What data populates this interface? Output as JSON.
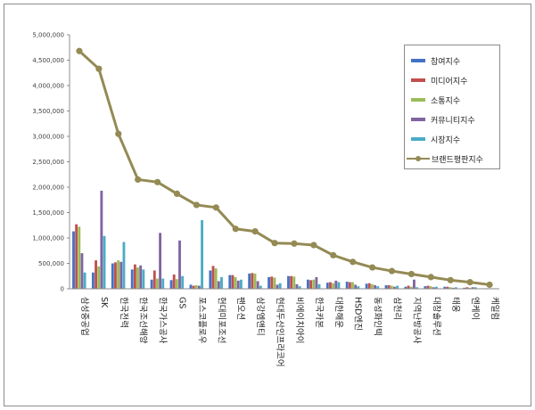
{
  "chart_data": {
    "type": "bar",
    "categories": [
      "삼성중공업",
      "SK",
      "한국전력",
      "한국조선해양",
      "한국가스공사",
      "GS",
      "포스코플로우",
      "현대미포조선",
      "팬오션",
      "삼강엠앤티",
      "현대두산인프라코어",
      "비에이치아이",
      "한국카본",
      "대한해운",
      "HSD엔진",
      "동성화인텍",
      "삼천리",
      "지역난방공사",
      "대창솔루션",
      "태웅",
      "엔케이",
      "케일럼"
    ],
    "series": [
      {
        "name": "참여지수",
        "color": "#4472C4",
        "values": [
          1130000,
          320000,
          500000,
          380000,
          180000,
          170000,
          80000,
          360000,
          270000,
          300000,
          230000,
          250000,
          180000,
          120000,
          140000,
          100000,
          70000,
          40000,
          50000,
          40000,
          20000,
          10000
        ]
      },
      {
        "name": "미디어지수",
        "color": "#C0504D",
        "values": [
          1270000,
          560000,
          520000,
          480000,
          360000,
          280000,
          60000,
          450000,
          270000,
          310000,
          240000,
          250000,
          170000,
          130000,
          130000,
          110000,
          70000,
          60000,
          60000,
          40000,
          30000,
          10000
        ]
      },
      {
        "name": "소통지수",
        "color": "#9BBB59",
        "values": [
          1220000,
          440000,
          560000,
          420000,
          200000,
          190000,
          70000,
          400000,
          230000,
          300000,
          220000,
          240000,
          180000,
          110000,
          130000,
          90000,
          60000,
          40000,
          50000,
          30000,
          20000,
          10000
        ]
      },
      {
        "name": "커뮤니티지수",
        "color": "#8064A2",
        "values": [
          700000,
          1930000,
          530000,
          460000,
          1100000,
          950000,
          60000,
          150000,
          160000,
          150000,
          80000,
          90000,
          230000,
          160000,
          80000,
          70000,
          40000,
          180000,
          30000,
          20000,
          30000,
          10000
        ]
      },
      {
        "name": "시장지수",
        "color": "#4BACC6",
        "values": [
          320000,
          1040000,
          920000,
          380000,
          200000,
          250000,
          1350000,
          230000,
          180000,
          60000,
          110000,
          50000,
          90000,
          130000,
          50000,
          50000,
          60000,
          30000,
          40000,
          30000,
          30000,
          10000
        ]
      }
    ],
    "line": {
      "name": "브랜드평판지수",
      "color": "#948A54",
      "values": [
        4680000,
        4330000,
        3050000,
        2150000,
        2100000,
        1870000,
        1650000,
        1600000,
        1180000,
        1130000,
        900000,
        890000,
        860000,
        660000,
        530000,
        420000,
        350000,
        290000,
        230000,
        170000,
        130000,
        80000
      ]
    },
    "ylim": [
      0,
      5000000
    ],
    "yticks": [
      "0",
      "500,000",
      "1,000,000",
      "1,500,000",
      "2,000,000",
      "2,500,000",
      "3,000,000",
      "3,500,000",
      "4,000,000",
      "4,500,000",
      "5,000,000"
    ],
    "grid": false,
    "legend_position": "top-right"
  }
}
